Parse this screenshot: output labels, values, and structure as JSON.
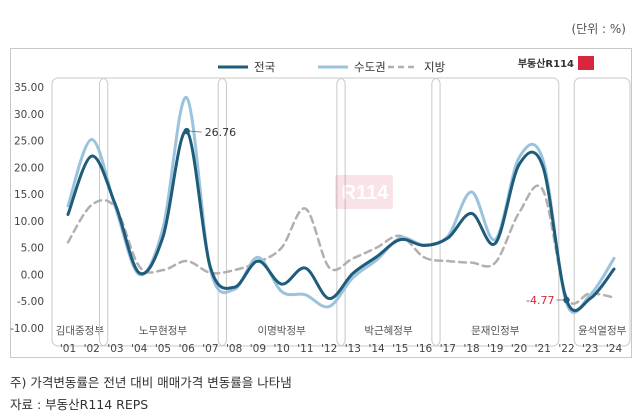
{
  "unit_label": "(단위 : %)",
  "brand": "부동산R114",
  "footnote": "주) 가격변동률은 전년 대비 매매가격 변동률을 나타냄",
  "source": "자료 : 부동산R114 REPS",
  "colors": {
    "national": "#1f5c7a",
    "capital": "#9bc3dd",
    "regional": "#b0b0b0",
    "brand": "#d7263d"
  },
  "chart_data": {
    "type": "line",
    "x": [
      "'01",
      "'02",
      "'03",
      "'04",
      "'05",
      "'06",
      "'07",
      "'08",
      "'09",
      "'10",
      "'11",
      "'12",
      "'13",
      "'14",
      "'15",
      "'16",
      "'17",
      "'18",
      "'19",
      "'20",
      "'21",
      "'22",
      "'23",
      "'24"
    ],
    "yticks": [
      "35.00",
      "30.00",
      "25.00",
      "20.00",
      "15.00",
      "10.00",
      "5.00",
      "0.00",
      "-5.00",
      "-10.00"
    ],
    "ylim": [
      -10,
      35
    ],
    "series": [
      {
        "name": "전국",
        "style": "solid-dark",
        "values": [
          11.2,
          22.1,
          13.0,
          0.3,
          7.0,
          26.76,
          1.3,
          -2.4,
          2.5,
          -1.8,
          1.2,
          -4.5,
          0.2,
          3.3,
          6.5,
          5.4,
          6.8,
          11.4,
          5.8,
          20.5,
          20.2,
          -4.77,
          -4.5,
          1.0
        ]
      },
      {
        "name": "수도권",
        "style": "solid-light",
        "values": [
          12.8,
          25.2,
          12.5,
          0.0,
          8.6,
          33.0,
          0.9,
          -2.8,
          3.2,
          -3.2,
          -3.8,
          -6.0,
          -0.6,
          2.7,
          6.8,
          5.5,
          7.1,
          15.4,
          6.5,
          21.8,
          21.5,
          -5.3,
          -3.8,
          3.0
        ]
      },
      {
        "name": "지방",
        "style": "dashed-gray",
        "values": [
          6.0,
          13.0,
          12.5,
          1.5,
          0.8,
          2.5,
          0.3,
          0.8,
          2.3,
          5.0,
          12.3,
          1.3,
          3.0,
          5.0,
          7.2,
          3.2,
          2.5,
          2.2,
          2.2,
          11.5,
          15.8,
          -4.2,
          -3.5,
          -4.3
        ]
      }
    ],
    "annotations": [
      {
        "label": "26.76",
        "series": "전국",
        "x": "'06",
        "y": 26.76
      },
      {
        "label": "-4.77",
        "series": "전국",
        "x": "'22",
        "y": -4.77
      }
    ],
    "eras": [
      {
        "label": "김대중정부",
        "from": "'01",
        "to": "'02"
      },
      {
        "label": "노무현정부",
        "from": "'03",
        "to": "'07"
      },
      {
        "label": "이명박정부",
        "from": "'08",
        "to": "'12"
      },
      {
        "label": "박근혜정부",
        "from": "'13",
        "to": "'16"
      },
      {
        "label": "문재인정부",
        "from": "'17",
        "to": "'21"
      },
      {
        "label": "윤석열정부",
        "from": "'23",
        "to": "'24"
      }
    ],
    "legend_position": "top-center",
    "grid": false
  }
}
